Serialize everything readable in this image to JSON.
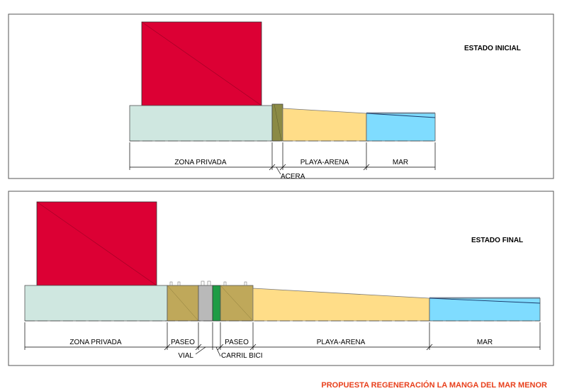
{
  "initial": {
    "title": "ESTADO INICIAL",
    "labels": {
      "zona_privada": "ZONA PRIVADA",
      "playa_arena": "PLAYA-ARENA",
      "mar": "MAR",
      "acera": "ACERA"
    }
  },
  "final": {
    "title": "ESTADO FINAL",
    "labels": {
      "zona_privada": "ZONA PRIVADA",
      "paseo_left": "PASEO",
      "paseo_right": "PASEO",
      "playa_arena": "PLAYA-ARENA",
      "mar": "MAR",
      "vial": "VIAL",
      "carril_bici": "CARRIL BICI"
    }
  },
  "footer": "PROPUESTA REGENERACIÓN LA MANGA DEL MAR MENOR",
  "colors": {
    "building": "#dc0034",
    "zona_privada": "#cfe7e0",
    "acera_paseo": "#bfa85a",
    "acera_initial": "#8b8a45",
    "vial": "#b9b9b9",
    "carril_bici": "#1e9c45",
    "arena": "#ffdd88",
    "mar": "#7fdcff",
    "footer": "#e8401c"
  }
}
